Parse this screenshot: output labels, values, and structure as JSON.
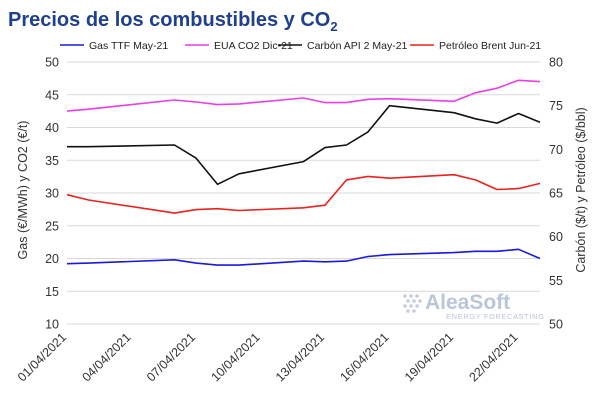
{
  "chart_data": {
    "type": "line",
    "title": "Precios de los combustibles y CO",
    "title_subscript": "2",
    "ylabel_left": "Gas (€/MWh) y CO2 (€/t)",
    "ylabel_right": "Carbón ($/t) y Petróleo ($/bbl)",
    "xlabel": "",
    "x": [
      "01/04/2021",
      "02/04/2021",
      "06/04/2021",
      "07/04/2021",
      "08/04/2021",
      "09/04/2021",
      "12/04/2021",
      "13/04/2021",
      "14/04/2021",
      "15/04/2021",
      "16/04/2021",
      "19/04/2021",
      "20/04/2021",
      "21/04/2021",
      "22/04/2021",
      "23/04/2021"
    ],
    "x_date_index": [
      0,
      1,
      5,
      6,
      7,
      8,
      11,
      12,
      13,
      14,
      15,
      18,
      19,
      20,
      21,
      22
    ],
    "x_tick_labels": [
      "01/04/2021",
      "04/04/2021",
      "07/04/2021",
      "10/04/2021",
      "13/04/2021",
      "16/04/2021",
      "19/04/2021",
      "22/04/2021"
    ],
    "x_tick_index": [
      0,
      3,
      6,
      9,
      12,
      15,
      18,
      21
    ],
    "x_range": [
      0,
      22
    ],
    "ylim_left": [
      10,
      50
    ],
    "yticks_left": [
      10,
      15,
      20,
      25,
      30,
      35,
      40,
      45,
      50
    ],
    "ylim_right": [
      50,
      80
    ],
    "yticks_right": [
      50,
      55,
      60,
      65,
      70,
      75,
      80
    ],
    "grid": "horizontal",
    "legend_position": "top",
    "series": [
      {
        "name": "Gas TTF May-21",
        "axis": "left",
        "color": "#1a1adc",
        "values": [
          19.2,
          19.3,
          19.8,
          19.3,
          19.0,
          19.0,
          19.6,
          19.5,
          19.6,
          20.3,
          20.6,
          20.9,
          21.1,
          21.1,
          21.4,
          20.0
        ]
      },
      {
        "name": "EUA CO2 Dic-21",
        "axis": "left",
        "color": "#e83fe8",
        "values": [
          42.5,
          42.8,
          44.2,
          43.9,
          43.5,
          43.6,
          44.5,
          43.8,
          43.8,
          44.3,
          44.4,
          44.0,
          45.3,
          46.0,
          47.2,
          47.0
        ]
      },
      {
        "name": "Carbón API 2 May-21",
        "axis": "right",
        "color": "#111111",
        "values": [
          70.3,
          70.3,
          70.5,
          69.0,
          66.0,
          67.2,
          68.6,
          70.2,
          70.5,
          72.0,
          75.0,
          74.2,
          73.5,
          73.0,
          74.1,
          73.1
        ]
      },
      {
        "name": "Petróleo Brent Jun-21",
        "axis": "right",
        "color": "#e8231f",
        "values": [
          64.8,
          64.2,
          62.7,
          63.1,
          63.2,
          63.0,
          63.3,
          63.6,
          66.5,
          66.9,
          66.7,
          67.1,
          66.5,
          65.4,
          65.5,
          66.1
        ]
      }
    ]
  },
  "watermark": {
    "brand": "AleaSoft",
    "tagline": "ENERGY FORECASTING"
  }
}
